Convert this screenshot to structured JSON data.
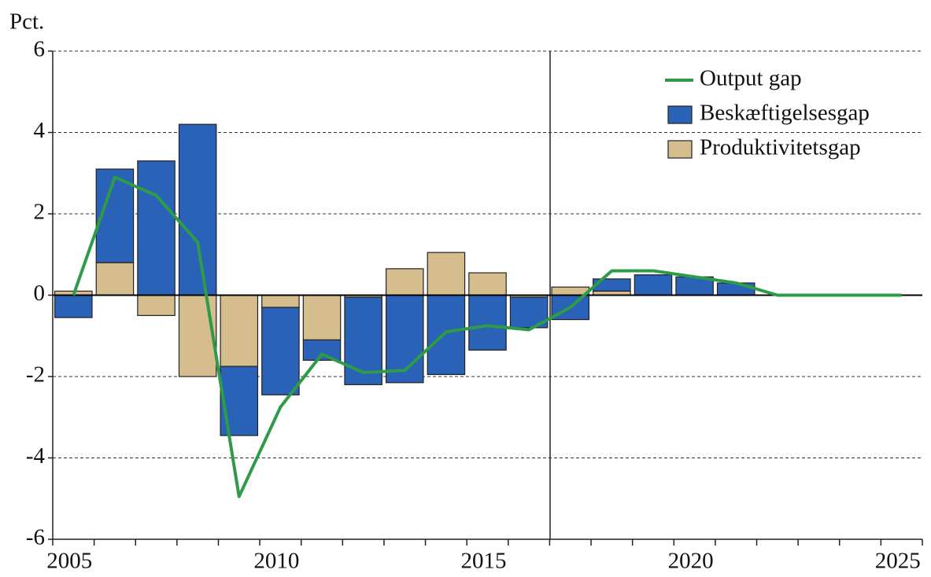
{
  "chart_data": {
    "type": "bar",
    "y_label": "Pct.",
    "categories": [
      "2005",
      null,
      null,
      null,
      null,
      "2010",
      null,
      null,
      null,
      null,
      "2015",
      null,
      null,
      null,
      null,
      "2020",
      null,
      null,
      null,
      null,
      "2025"
    ],
    "series": [
      {
        "name": "Output gap",
        "type": "line",
        "color": "#2e9b48",
        "values": [
          0,
          2.9,
          2.45,
          1.3,
          -4.95,
          -2.75,
          -1.45,
          -1.9,
          -1.85,
          -0.9,
          -0.75,
          -0.85,
          -0.3,
          0.6,
          0.6,
          0.45,
          0.3,
          0,
          0,
          0,
          0
        ]
      },
      {
        "name": "Beskæftigelsesgap",
        "type": "bar",
        "color": "#2a62b8",
        "values": [
          -0.55,
          2.3,
          3.3,
          4.2,
          -1.7,
          -2.15,
          -0.5,
          -2.15,
          -2.15,
          -1.95,
          -1.35,
          -0.75,
          -0.6,
          0.3,
          0.5,
          0.45,
          0.3,
          0,
          0,
          0,
          0
        ]
      },
      {
        "name": "Produktivitetsgap",
        "type": "bar",
        "color": "#d6bd8d",
        "values": [
          0.1,
          0.8,
          -0.5,
          -2.0,
          -1.75,
          -0.3,
          -1.1,
          -0.05,
          0.65,
          1.05,
          0.55,
          -0.05,
          0.2,
          0.1,
          0,
          0,
          0,
          0,
          0,
          0,
          0
        ]
      }
    ],
    "stack_order": [
      "Produktivitetsgap",
      "Beskæftigelsesgap"
    ],
    "ylim": [
      -6,
      6
    ],
    "yticks": [
      -6,
      -4,
      -2,
      0,
      2,
      4,
      6
    ],
    "grid": true,
    "legend": "upper right"
  }
}
